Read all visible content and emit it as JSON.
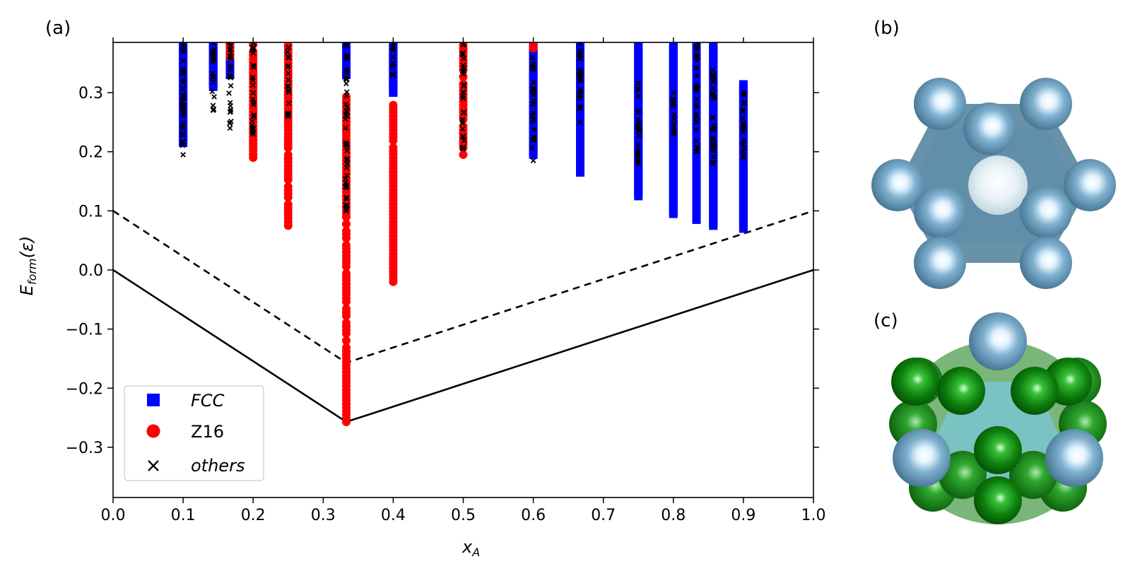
{
  "panels": {
    "a": "(a)",
    "b": "(b)",
    "c": "(c)"
  },
  "chart_data": {
    "type": "scatter",
    "xlabel_main": "x",
    "xlabel_sub": "A",
    "ylabel_main": "E",
    "ylabel_sub": "form",
    "ylabel_tail": "(ε)",
    "xlim": [
      0.0,
      1.0
    ],
    "ylim": [
      -0.385,
      0.385
    ],
    "xticks": [
      0.0,
      0.1,
      0.2,
      0.3,
      0.4,
      0.5,
      0.6,
      0.7,
      0.8,
      0.9,
      1.0
    ],
    "xtick_labels": [
      "0.0",
      "0.1",
      "0.2",
      "0.3",
      "0.4",
      "0.5",
      "0.6",
      "0.7",
      "0.8",
      "0.9",
      "1.0"
    ],
    "yticks": [
      -0.3,
      -0.2,
      -0.1,
      0.0,
      0.1,
      0.2,
      0.3
    ],
    "ytick_labels": [
      "−0.3",
      "−0.2",
      "−0.1",
      "0.0",
      "0.1",
      "0.2",
      "0.3"
    ],
    "legend": {
      "placement": "lower-left",
      "entries": [
        "FCC",
        "Z16",
        "others"
      ]
    },
    "colors": {
      "FCC": "#0000ff",
      "Z16": "#ff0000",
      "others": "#000000"
    },
    "hull": {
      "x": [
        0.0,
        0.333,
        1.0
      ],
      "y": [
        0.0,
        -0.257,
        0.0
      ],
      "style": "solid"
    },
    "hull_offset": {
      "x": [
        0.0,
        0.333,
        1.0
      ],
      "y": [
        0.1,
        -0.157,
        0.1
      ],
      "style": "dashed"
    },
    "series": [
      {
        "name": "FCC",
        "marker": "square",
        "ranges": [
          {
            "x": 0.1,
            "ymin": 0.215,
            "ymax": 0.385
          },
          {
            "x": 0.143,
            "ymin": 0.31,
            "ymax": 0.385
          },
          {
            "x": 0.167,
            "ymin": 0.33,
            "ymax": 0.385
          },
          {
            "x": 0.333,
            "ymin": 0.33,
            "ymax": 0.385
          },
          {
            "x": 0.4,
            "ymin": 0.3,
            "ymax": 0.385
          },
          {
            "x": 0.6,
            "ymin": 0.195,
            "ymax": 0.385
          },
          {
            "x": 0.667,
            "ymin": 0.165,
            "ymax": 0.385
          },
          {
            "x": 0.75,
            "ymin": 0.125,
            "ymax": 0.385
          },
          {
            "x": 0.8,
            "ymin": 0.095,
            "ymax": 0.385
          },
          {
            "x": 0.833,
            "ymin": 0.085,
            "ymax": 0.385
          },
          {
            "x": 0.857,
            "ymin": 0.075,
            "ymax": 0.385
          },
          {
            "x": 0.9,
            "ymin": 0.07,
            "ymax": 0.315
          }
        ]
      },
      {
        "name": "Z16",
        "marker": "circle",
        "ranges": [
          {
            "x": 0.167,
            "ymin": 0.36,
            "ymax": 0.385
          },
          {
            "x": 0.2,
            "ymin": 0.19,
            "ymax": 0.385
          },
          {
            "x": 0.25,
            "ymin": 0.075,
            "ymax": 0.385
          },
          {
            "x": 0.333,
            "ymin": -0.257,
            "ymax": 0.3
          },
          {
            "x": 0.4,
            "ymin": -0.02,
            "ymax": 0.28
          },
          {
            "x": 0.5,
            "ymin": 0.195,
            "ymax": 0.385
          },
          {
            "x": 0.6,
            "ymin": 0.375,
            "ymax": 0.385
          }
        ]
      },
      {
        "name": "others",
        "marker": "x",
        "ranges": [
          {
            "x": 0.1,
            "ymin": 0.195,
            "ymax": 0.385
          },
          {
            "x": 0.143,
            "ymin": 0.27,
            "ymax": 0.385
          },
          {
            "x": 0.167,
            "ymin": 0.24,
            "ymax": 0.385
          },
          {
            "x": 0.2,
            "ymin": 0.23,
            "ymax": 0.385
          },
          {
            "x": 0.25,
            "ymin": 0.26,
            "ymax": 0.385
          },
          {
            "x": 0.333,
            "ymin": 0.1,
            "ymax": 0.385
          },
          {
            "x": 0.4,
            "ymin": 0.33,
            "ymax": 0.385
          },
          {
            "x": 0.5,
            "ymin": 0.205,
            "ymax": 0.385
          },
          {
            "x": 0.6,
            "ymin": 0.185,
            "ymax": 0.36
          },
          {
            "x": 0.667,
            "ymin": 0.25,
            "ymax": 0.385
          },
          {
            "x": 0.75,
            "ymin": 0.18,
            "ymax": 0.32
          },
          {
            "x": 0.8,
            "ymin": 0.23,
            "ymax": 0.3
          },
          {
            "x": 0.833,
            "ymin": 0.2,
            "ymax": 0.385
          },
          {
            "x": 0.857,
            "ymin": 0.18,
            "ymax": 0.34
          },
          {
            "x": 0.9,
            "ymin": 0.19,
            "ymax": 0.305
          }
        ]
      }
    ]
  },
  "structures": {
    "b": {
      "atom_color": "#6fa3c4",
      "frame_color": "#4f7f9a"
    },
    "c": {
      "atom_color": "#6fa3c4",
      "green_color": "#128a12",
      "frame_color": "#5b9fb8"
    }
  }
}
